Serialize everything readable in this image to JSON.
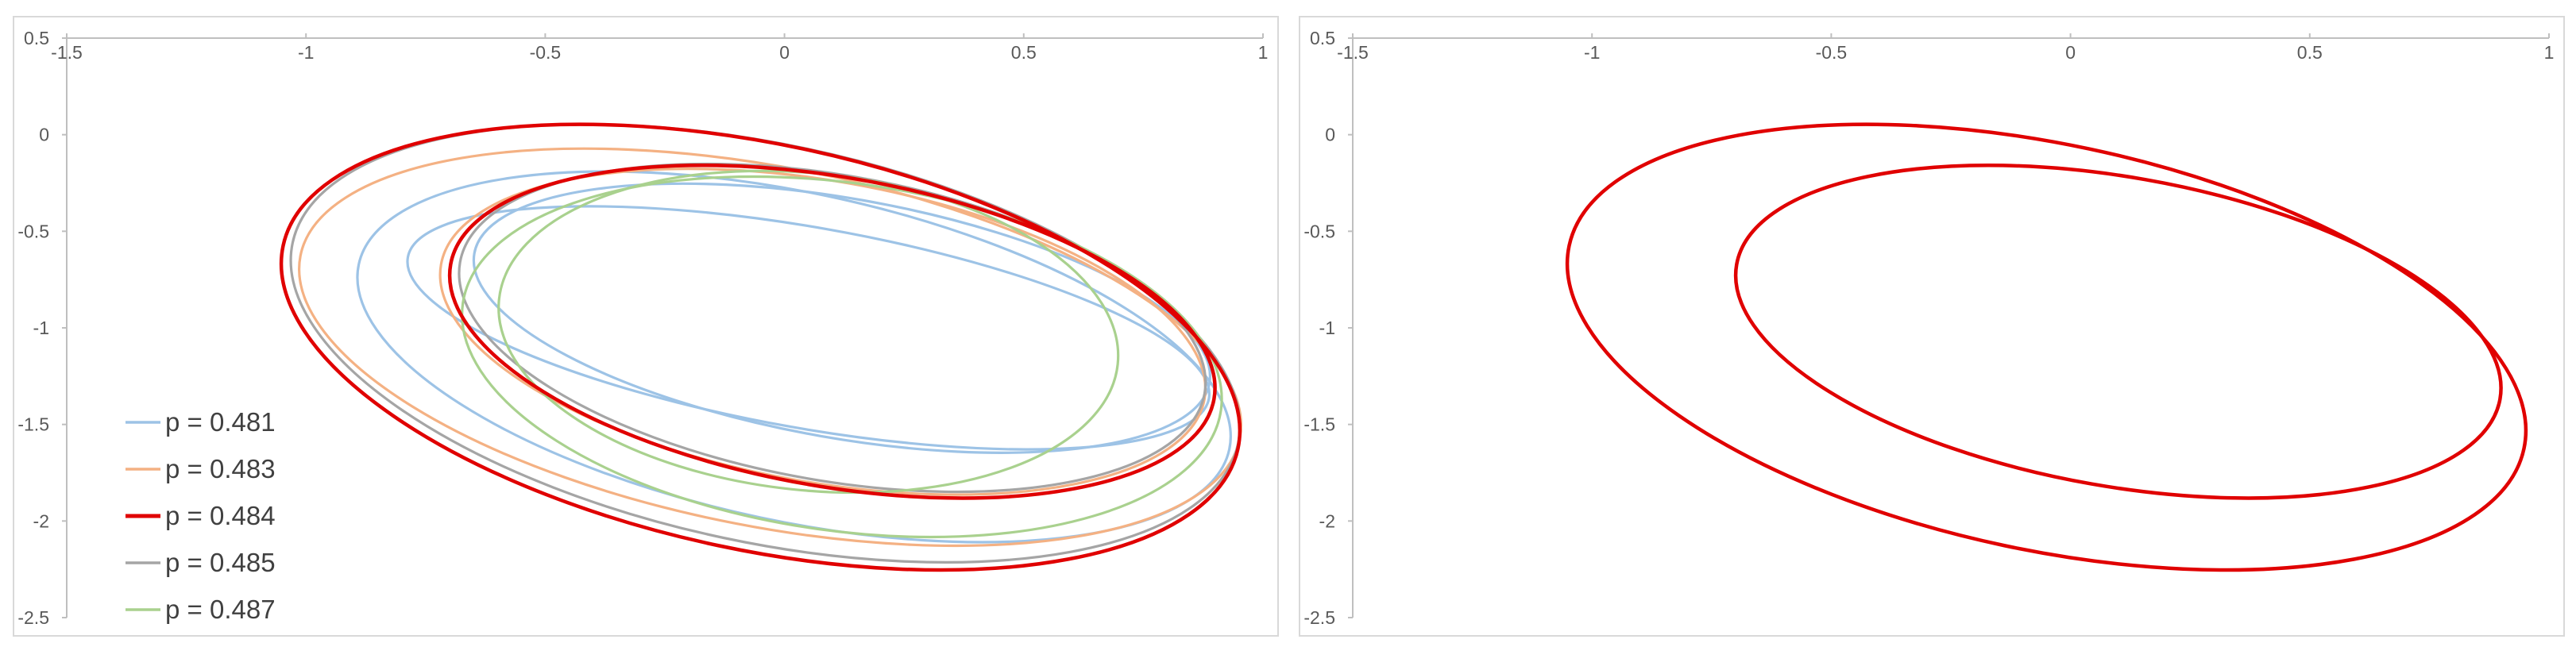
{
  "chart_data": [
    {
      "type": "line",
      "title": "",
      "xlabel": "",
      "ylabel": "",
      "xlim": [
        -1.5,
        1
      ],
      "ylim": [
        -2.5,
        0.5
      ],
      "xticks": [
        -1.5,
        -1,
        -0.5,
        0,
        0.5,
        1
      ],
      "yticks": [
        0.5,
        0,
        -0.5,
        -1,
        -1.5,
        -2,
        -2.5
      ],
      "xtick_labels": [
        "-1.5",
        "-1",
        "-0.5",
        "0",
        "0.5",
        "1"
      ],
      "ytick_labels": [
        "0.5",
        "0",
        "-0.5",
        "-1",
        "-1.5",
        "-2",
        "-2.5"
      ],
      "grid": false,
      "legend_position": "bottom-left",
      "series": [
        {
          "name": "p = 0.481",
          "color": "#9dc3e6",
          "loops": [
            {
              "cx": 0.05,
              "cy": -1.0,
              "rx": 0.85,
              "ry": 0.52,
              "angle": 10
            },
            {
              "cx": 0.12,
              "cy": -0.95,
              "rx": 0.78,
              "ry": 0.62,
              "angle": 10
            },
            {
              "cx": 0.02,
              "cy": -1.15,
              "rx": 0.93,
              "ry": 0.85,
              "angle": 12
            }
          ]
        },
        {
          "name": "p = 0.483",
          "color": "#f4b183",
          "loops": [
            {
              "cx": -0.03,
              "cy": -1.1,
              "rx": 1.0,
              "ry": 0.93,
              "angle": 11
            },
            {
              "cx": 0.08,
              "cy": -1.02,
              "rx": 0.81,
              "ry": 0.78,
              "angle": 10
            }
          ]
        },
        {
          "name": "p = 0.484",
          "color": "#e00000",
          "loops": [
            {
              "cx": -0.05,
              "cy": -1.1,
              "rx": 1.02,
              "ry": 1.05,
              "angle": 12
            },
            {
              "cx": 0.1,
              "cy": -1.02,
              "rx": 0.81,
              "ry": 0.8,
              "angle": 10
            }
          ]
        },
        {
          "name": "p = 0.485",
          "color": "#a5a5a5",
          "loops": [
            {
              "cx": -0.04,
              "cy": -1.08,
              "rx": 1.01,
              "ry": 1.03,
              "angle": 12
            },
            {
              "cx": 0.1,
              "cy": -1.0,
              "rx": 0.79,
              "ry": 0.79,
              "angle": 10
            }
          ]
        },
        {
          "name": "p = 0.487",
          "color": "#a9d18e",
          "loops": [
            {
              "cx": 0.12,
              "cy": -1.15,
              "rx": 0.8,
              "ry": 0.9,
              "angle": 8
            },
            {
              "cx": 0.05,
              "cy": -1.02,
              "rx": 0.65,
              "ry": 0.82,
              "angle": 6
            }
          ]
        }
      ]
    },
    {
      "type": "line",
      "title": "",
      "xlabel": "",
      "ylabel": "",
      "xlim": [
        -1.5,
        1
      ],
      "ylim": [
        -2.5,
        0.5
      ],
      "xticks": [
        -1.5,
        -1,
        -0.5,
        0,
        0.5,
        1
      ],
      "yticks": [
        0.5,
        0,
        -0.5,
        -1,
        -1.5,
        -2,
        -2.5
      ],
      "xtick_labels": [
        "-1.5",
        "-1",
        "-0.5",
        "0",
        "0.5",
        "1"
      ],
      "ytick_labels": [
        "0.5",
        "0",
        "-0.5",
        "-1",
        "-1.5",
        "-2",
        "-2.5"
      ],
      "grid": false,
      "series": [
        {
          "color": "#e00000",
          "loops": [
            {
              "cx": -0.05,
              "cy": -1.1,
              "rx": 1.02,
              "ry": 1.05,
              "angle": 12
            },
            {
              "cx": 0.1,
              "cy": -1.02,
              "rx": 0.81,
              "ry": 0.8,
              "angle": 10
            }
          ]
        }
      ]
    }
  ]
}
